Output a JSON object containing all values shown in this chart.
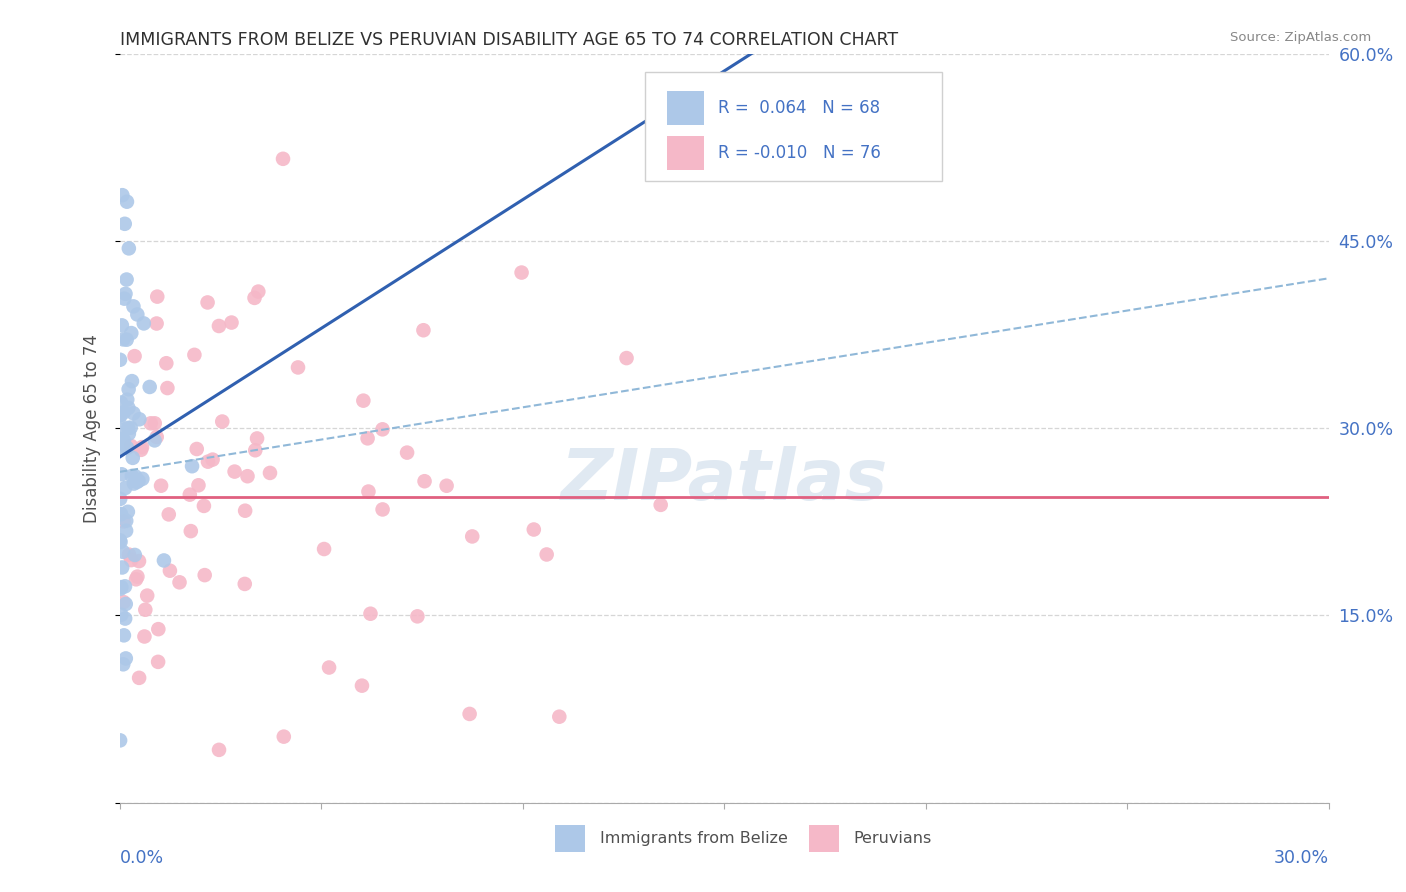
{
  "title": "IMMIGRANTS FROM BELIZE VS PERUVIAN DISABILITY AGE 65 TO 74 CORRELATION CHART",
  "source": "Source: ZipAtlas.com",
  "ylabel": "Disability Age 65 to 74",
  "xlim": [
    0.0,
    0.3
  ],
  "ylim": [
    0.0,
    0.6
  ],
  "belize_R": 0.064,
  "belize_N": 68,
  "peru_R": -0.01,
  "peru_N": 76,
  "belize_dot_color": "#adc8e8",
  "peru_dot_color": "#f5b8c8",
  "belize_line_color": "#3060b0",
  "belize_dash_color": "#90b8d8",
  "peru_line_color": "#e06080",
  "legend_label_belize": "Immigrants from Belize",
  "legend_label_peru": "Peruvians",
  "background_color": "#ffffff",
  "grid_color": "#cccccc",
  "title_color": "#303030",
  "axis_label_color": "#4472c4",
  "right_ytick_vals": [
    0.15,
    0.3,
    0.45,
    0.6
  ],
  "right_ytick_labels": [
    "15.0%",
    "30.0%",
    "45.0%",
    "60.0%"
  ],
  "xtick_vals": [
    0.0,
    0.05,
    0.1,
    0.15,
    0.2,
    0.25,
    0.3
  ]
}
